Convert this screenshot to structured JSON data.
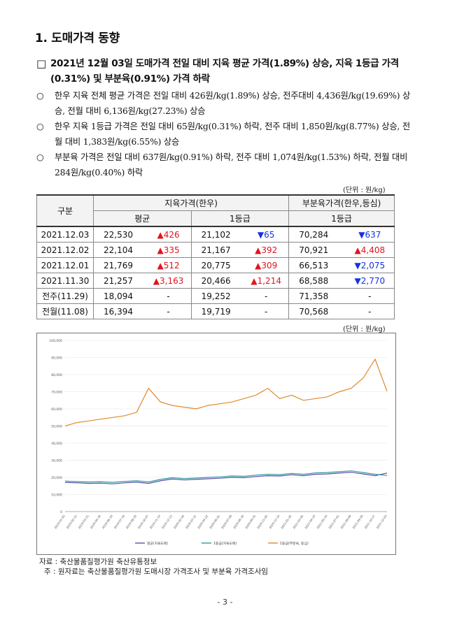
{
  "section_title": "1. 도매가격 동향",
  "lead_mark": "□",
  "lead_text": "2021년 12월 03일 도매가격 전일 대비 지육 평균 가격(1.89%) 상승, 지육 1등급 가격(0.31%) 및 부분육(0.91%) 가격 하락",
  "bullets": [
    {
      "mark": "○",
      "text": "한우 지육 전체 평균 가격은 전일 대비 426원/kg(1.89%) 상승, 전주대비 4,436원/kg(19.69%) 상승, 전월 대비 6,136원/kg(27.23%) 상승"
    },
    {
      "mark": "○",
      "text": "한우 지육 1등급 가격은 전일 대비 65원/kg(0.31%) 하락, 전주 대비 1,850원/kg(8.77%) 상승, 전월 대비 1,383원/kg(6.55%) 상승"
    },
    {
      "mark": "○",
      "text": "부분육 가격은 전일 대비 637원/kg(0.91%) 하락, 전주 대비 1,074원/kg(1.53%) 하락, 전월 대비 284원/kg(0.40%) 하락"
    }
  ],
  "table_unit": "(단위 : 원/kg)",
  "table": {
    "h_gubun": "구분",
    "h_jiyuk": "지육가격(한우)",
    "h_bubun": "부분육가격(한우,등심)",
    "h_avg": "평균",
    "h_grade1": "1등급",
    "h_grade1b": "1등급",
    "rows": [
      {
        "date": "2021.12.03",
        "avg": "22,530",
        "avg_chg": "▲426",
        "avg_dir": "up",
        "g1": "21,102",
        "g1_chg": "▼65",
        "g1_dir": "dn",
        "bb": "70,284",
        "bb_chg": "▼637",
        "bb_dir": "dn"
      },
      {
        "date": "2021.12.02",
        "avg": "22,104",
        "avg_chg": "▲335",
        "avg_dir": "up",
        "g1": "21,167",
        "g1_chg": "▲392",
        "g1_dir": "up",
        "bb": "70,921",
        "bb_chg": "▲4,408",
        "bb_dir": "up"
      },
      {
        "date": "2021.12.01",
        "avg": "21,769",
        "avg_chg": "▲512",
        "avg_dir": "up",
        "g1": "20,775",
        "g1_chg": "▲309",
        "g1_dir": "up",
        "bb": "66,513",
        "bb_chg": "▼2,075",
        "bb_dir": "dn"
      },
      {
        "date": "2021.11.30",
        "avg": "21,257",
        "avg_chg": "▲3,163",
        "avg_dir": "up",
        "g1": "20,466",
        "g1_chg": "▲1,214",
        "g1_dir": "up",
        "bb": "68,588",
        "bb_chg": "▼2,770",
        "bb_dir": "dn"
      },
      {
        "date": "전주(11.29)",
        "avg": "18,094",
        "avg_chg": "-",
        "avg_dir": "",
        "g1": "19,252",
        "g1_chg": "-",
        "g1_dir": "",
        "bb": "71,358",
        "bb_chg": "-",
        "bb_dir": ""
      },
      {
        "date": "전월(11.08)",
        "avg": "16,394",
        "avg_chg": "-",
        "avg_dir": "",
        "g1": "19,719",
        "g1_chg": "-",
        "g1_dir": "",
        "bb": "70,568",
        "bb_chg": "-",
        "bb_dir": ""
      }
    ]
  },
  "chart_unit": "(단위 : 원/kg)",
  "chart_data": {
    "type": "line",
    "ylim": [
      0,
      100000
    ],
    "yticks": [
      "0",
      "10,000",
      "20,000",
      "30,000",
      "40,000",
      "50,000",
      "60,000",
      "70,000",
      "80,000",
      "90,000",
      "100,000"
    ],
    "xticks": [
      "2019-01-02",
      "2019-02-12",
      "2019-03-21",
      "2019-04-30",
      "2019-06-10",
      "2019-07-18",
      "2019-08-26",
      "2019-10-07",
      "2019-11-14",
      "2019-12-23",
      "2020-02-04",
      "2020-03-12",
      "2020-04-22",
      "2020-06-01",
      "2020-07-09",
      "2020-08-18",
      "2020-09-25",
      "2020-11-05",
      "2020-12-14",
      "2021-01-26",
      "2021-03-05",
      "2021-04-14",
      "2021-05-24",
      "2021-07-01",
      "2021-08-09",
      "2021-09-20",
      "2021-10-27",
      "2021-12-03"
    ],
    "legend": [
      "평균(지육도매)",
      "1등급(지육도매)",
      "1등급(부분육, 등심)"
    ],
    "colors": [
      "#5a4fa8",
      "#2f9aa0",
      "#e08a2c"
    ],
    "series": [
      {
        "name": "평균(지육도매)",
        "values": [
          17000,
          16800,
          16500,
          16600,
          16200,
          16800,
          17200,
          16500,
          18000,
          19000,
          18500,
          18800,
          19200,
          19500,
          20000,
          19800,
          20500,
          21000,
          20800,
          21500,
          21000,
          21800,
          22000,
          22500,
          23000,
          22000,
          21000,
          22530
        ]
      },
      {
        "name": "1등급(지육도매)",
        "values": [
          17800,
          17500,
          17300,
          17400,
          17100,
          17600,
          18000,
          17300,
          18800,
          19800,
          19300,
          19600,
          20000,
          20300,
          20800,
          20600,
          21300,
          21800,
          21600,
          22300,
          21800,
          22600,
          22800,
          23300,
          23800,
          22800,
          21800,
          21102
        ]
      },
      {
        "name": "1등급(부분육, 등심)",
        "values": [
          50000,
          52000,
          53000,
          54000,
          55000,
          56000,
          58000,
          72000,
          64000,
          62000,
          61000,
          60000,
          62000,
          63000,
          64000,
          66000,
          68000,
          72000,
          66000,
          68000,
          65000,
          66000,
          67000,
          70000,
          72000,
          78000,
          89000,
          70284
        ]
      }
    ]
  },
  "source_line": "자료 : 축산물품질평가원 축산유통정보",
  "note_line": "주 : 원자료는 축산물품질평가원 도매시장 가격조사 및 부분육 가격조사임",
  "page_number": "- 3 -"
}
